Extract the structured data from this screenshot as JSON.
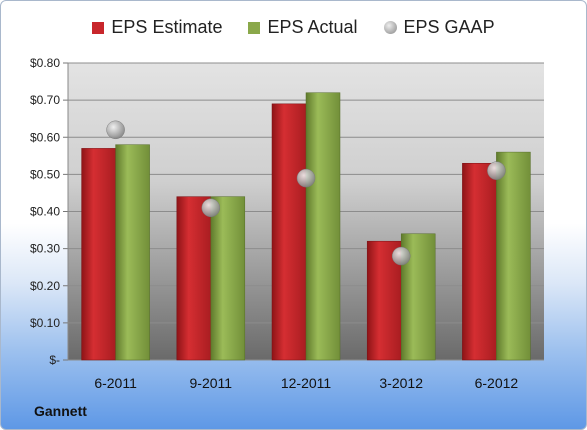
{
  "legend": {
    "estimate": "EPS Estimate",
    "actual": "EPS Actual",
    "gaap": "EPS GAAP"
  },
  "company": "Gannett",
  "colors": {
    "estimate": "#c8262b",
    "actual": "#8aa84a",
    "gaap": "#a6a6a6"
  },
  "chart_data": {
    "type": "bar",
    "categories": [
      "6-2011",
      "9-2011",
      "12-2011",
      "3-2012",
      "6-2012"
    ],
    "series": [
      {
        "name": "EPS Estimate",
        "values": [
          0.57,
          0.44,
          0.69,
          0.32,
          0.53
        ]
      },
      {
        "name": "EPS Actual",
        "values": [
          0.58,
          0.44,
          0.72,
          0.34,
          0.56
        ]
      },
      {
        "name": "EPS GAAP",
        "values": [
          0.62,
          0.41,
          0.49,
          0.28,
          0.51
        ]
      }
    ],
    "y_tick_labels": [
      "$-",
      "$0.10",
      "$0.20",
      "$0.30",
      "$0.40",
      "$0.50",
      "$0.60",
      "$0.70",
      "$0.80"
    ],
    "ylim": [
      0,
      0.8
    ],
    "grid": true,
    "legend_position": "top"
  }
}
